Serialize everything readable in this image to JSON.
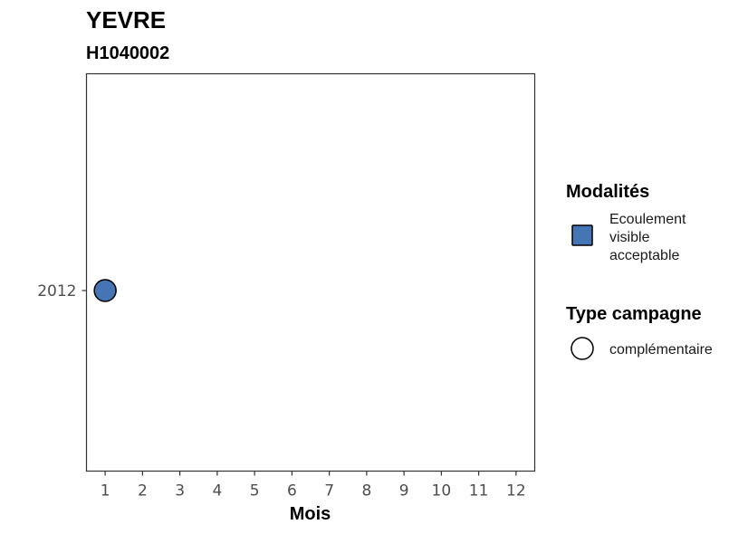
{
  "chart_data": {
    "type": "scatter",
    "title": "YEVRE",
    "subtitle": "H1040002",
    "xlabel": "Mois",
    "ylabel": "",
    "x_ticks": [
      "1",
      "2",
      "3",
      "4",
      "5",
      "6",
      "7",
      "8",
      "9",
      "10",
      "11",
      "12"
    ],
    "y_ticks": [
      "2012"
    ],
    "xlim": [
      0.5,
      12.5
    ],
    "grid": false,
    "legend_position": "right",
    "points": [
      {
        "x": 1,
        "y": "2012",
        "modalite": "Ecoulement visible acceptable",
        "type_campagne": "complémentaire"
      }
    ],
    "legends": {
      "modalites": {
        "title": "Modalités",
        "entries": [
          {
            "label_lines": [
              "Ecoulement",
              "visible",
              "acceptable"
            ],
            "color": "#4575b4",
            "shape": "square"
          }
        ]
      },
      "type_campagne": {
        "title": "Type campagne",
        "entries": [
          {
            "label": "complémentaire",
            "shape": "circle"
          }
        ]
      }
    }
  },
  "colors": {
    "point_fill": "#4575b4",
    "point_stroke": "#000000",
    "panel_border": "#333333",
    "tick_text": "#4d4d4d"
  }
}
